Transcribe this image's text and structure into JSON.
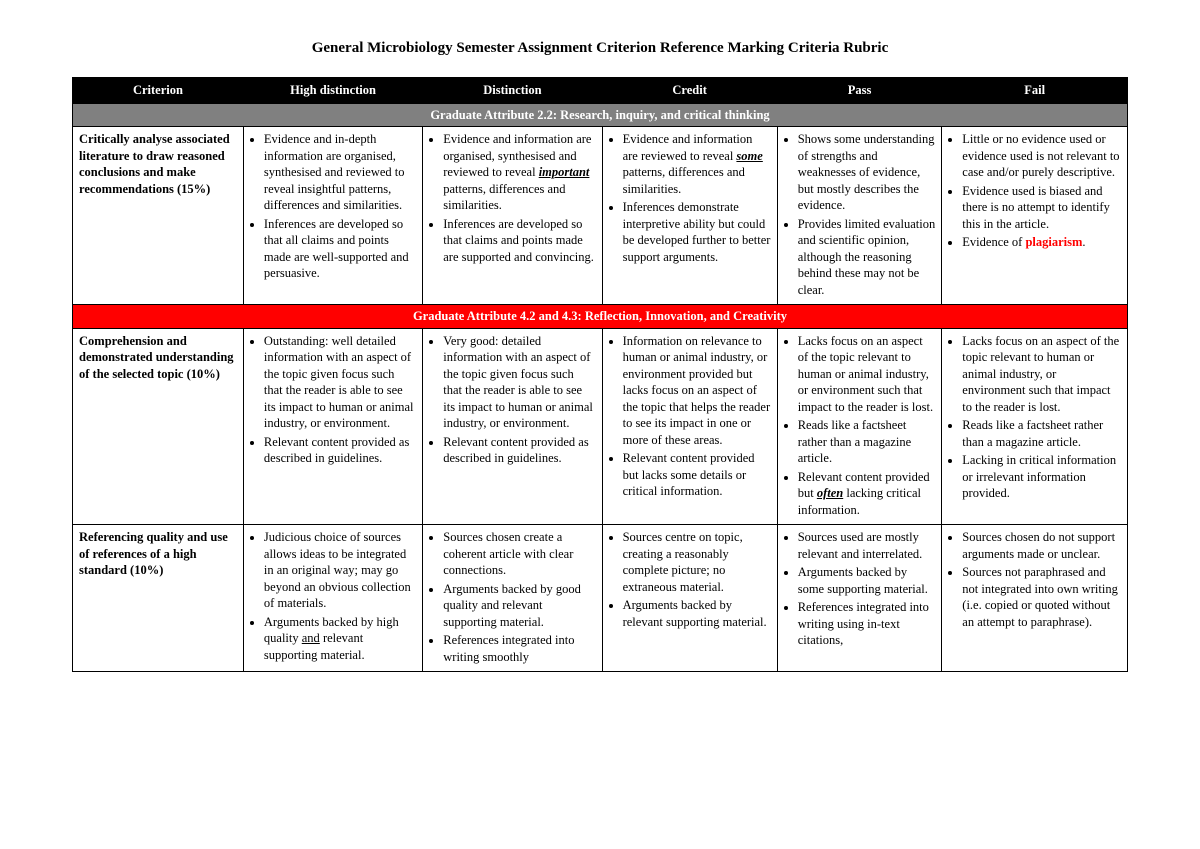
{
  "title": "General Microbiology Semester Assignment Criterion Reference Marking Criteria Rubric",
  "colors": {
    "header_bg": "#000000",
    "header_text": "#ffffff",
    "section1_bg": "#808080",
    "section1_text": "#ffffff",
    "section2_bg": "#ff0000",
    "section2_text": "#ffffff",
    "body_bg": "#ffffff",
    "body_text": "#000000",
    "border": "#000000",
    "plagiarism_color": "#ff0000"
  },
  "typography": {
    "title_fontsize": 15,
    "title_weight": "bold",
    "body_fontsize": 12.5,
    "font_family": "Georgia, Times New Roman, serif",
    "line_height": 1.32
  },
  "columns": [
    "Criterion",
    "High distinction",
    "Distinction",
    "Credit",
    "Pass",
    "Fail"
  ],
  "column_widths_pct": [
    16.2,
    17.0,
    17.0,
    16.6,
    15.6,
    17.6
  ],
  "section1": {
    "label": "Graduate Attribute 2.2: Research, inquiry, and critical thinking",
    "row1": {
      "criterion": "Critically analyse associated literature to draw reasoned conclusions and make recommendations (15%)",
      "hd": [
        "Evidence and in-depth information are organised, synthesised and reviewed to reveal insightful patterns, differences and similarities.",
        "Inferences are developed so that all claims and points made are well-supported and persuasive."
      ],
      "d_pre": "Evidence and information are organised, synthesised and reviewed to reveal ",
      "d_emph": "important",
      "d_post": " patterns, differences and similarities.",
      "d2": "Inferences are developed so that claims and points made are supported and convincing.",
      "c_pre": "Evidence and information are reviewed to reveal ",
      "c_emph": "some",
      "c_post": " patterns, differences and similarities.",
      "c2": "Inferences demonstrate interpretive ability but could be developed further to better support arguments.",
      "p": [
        "Shows some understanding of strengths and weaknesses of evidence, but mostly describes the evidence.",
        "Provides limited evaluation and scientific opinion, although the reasoning behind these may not be clear."
      ],
      "f1": "Little or no evidence used or evidence used is not relevant to case and/or purely descriptive.",
      "f2": "Evidence used is biased and there is no attempt to identify this in the article.",
      "f3_pre": "Evidence of ",
      "f3_emph": "plagiarism",
      "f3_post": "."
    }
  },
  "section2": {
    "label": "Graduate Attribute 4.2 and 4.3: Reflection, Innovation, and Creativity",
    "row2": {
      "criterion": "Comprehension and demonstrated understanding of the selected topic (10%)",
      "hd": [
        "Outstanding: well detailed information with an aspect of the topic given focus such that the reader is able to see its impact to human or animal industry, or environment.",
        "Relevant content provided as described in guidelines."
      ],
      "d": [
        "Very good: detailed information with an aspect of the topic given focus such that the reader is able to see its impact to human or animal industry, or environment.",
        "Relevant content provided as described in guidelines."
      ],
      "c": [
        "Information on relevance to human or animal industry, or environment provided but lacks focus on an aspect of the topic that helps the reader to see its impact in one or more of these areas.",
        "Relevant content provided but lacks some details or critical information."
      ],
      "p1": "Lacks focus on an aspect of the topic relevant to human or animal industry, or environment such that impact to the reader is lost.",
      "p2": "Reads like a factsheet rather than a magazine article.",
      "p3_pre": "Relevant content provided but ",
      "p3_emph": "often",
      "p3_post": " lacking critical information.",
      "f": [
        "Lacks focus on an aspect of the topic relevant to human or animal industry, or environment such that impact to the reader is lost.",
        "Reads like a factsheet rather than a magazine article.",
        "Lacking in critical information or irrelevant information provided."
      ]
    },
    "row3": {
      "criterion": "Referencing quality and use of references of a high standard (10%)",
      "hd1": "Judicious choice of sources allows ideas to be integrated in an original way; may go beyond an obvious collection of materials.",
      "hd2_pre": "Arguments backed by high quality ",
      "hd2_emph": "and",
      "hd2_post": " relevant supporting material.",
      "d": [
        "Sources chosen create a coherent article with clear connections.",
        "Arguments backed by good quality and relevant supporting material.",
        "References integrated into writing smoothly"
      ],
      "c": [
        "Sources centre on topic, creating a reasonably complete picture; no extraneous material.",
        "Arguments backed by relevant supporting material."
      ],
      "p": [
        "Sources used are mostly relevant and interrelated.",
        "Arguments backed by some supporting material.",
        "References integrated into writing using in-text citations,"
      ],
      "f": [
        "Sources chosen do not support arguments made or unclear.",
        "Sources not paraphrased and not integrated into own writing (i.e. copied or quoted without an attempt to paraphrase)."
      ]
    }
  }
}
